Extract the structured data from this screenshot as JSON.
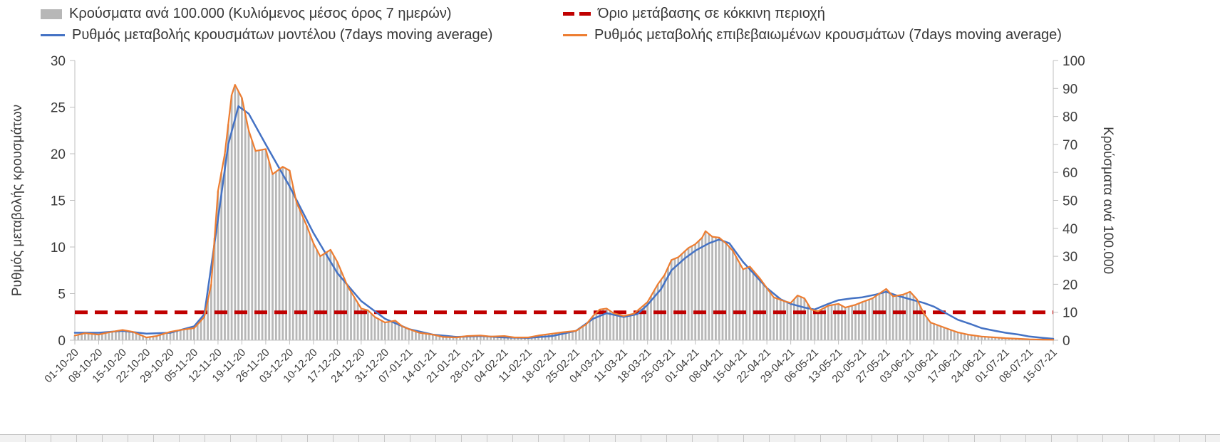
{
  "legend": {
    "items": [
      {
        "label": "Κρούσματα ανά 100.000 (Κυλιόμενος μέσος όρος 7 ημερών)"
      },
      {
        "label": "Όριο μετάβασης σε κόκκινη περιοχή"
      },
      {
        "label": "Ρυθμός μεταβολής κρουσμάτων μοντέλου (7days moving average)"
      },
      {
        "label": "Ρυθμός μεταβολής επιβεβαιωμένων κρουσμάτων (7days moving average)"
      }
    ]
  },
  "chart_data": {
    "type": "bar+line",
    "title": "",
    "legend_position": "top",
    "grid": false,
    "x_tick_labels": [
      "01-10-20",
      "08-10-20",
      "15-10-20",
      "22-10-20",
      "29-10-20",
      "05-11-20",
      "12-11-20",
      "19-11-20",
      "26-11-20",
      "03-12-20",
      "10-12-20",
      "17-12-20",
      "24-12-20",
      "31-12-20",
      "07-01-21",
      "14-01-21",
      "21-01-21",
      "28-01-21",
      "04-02-21",
      "11-02-21",
      "18-02-21",
      "25-02-21",
      "04-03-21",
      "11-03-21",
      "18-03-21",
      "25-03-21",
      "01-04-21",
      "08-04-21",
      "15-04-21",
      "22-04-21",
      "29-04-21",
      "06-05-21",
      "13-05-21",
      "20-05-21",
      "27-05-21",
      "03-06-21",
      "10-06-21",
      "17-06-21",
      "24-06-21",
      "01-07-21",
      "08-07-21",
      "15-07-21"
    ],
    "x_tick_day_spacing": 7,
    "x_day_range": [
      0,
      287
    ],
    "left_axis": {
      "label": "Ρυθμός μεταβολής κρουσμάτων",
      "min": 0,
      "max": 30,
      "ticks": [
        0,
        5,
        10,
        15,
        20,
        25,
        30
      ]
    },
    "right_axis": {
      "label": "Κρούσματα ανά 100.000",
      "min": 0,
      "max": 100,
      "ticks": [
        0,
        10,
        20,
        30,
        40,
        50,
        60,
        70,
        80,
        90,
        100
      ]
    },
    "threshold": {
      "name": "Όριο μετάβασης σε κόκκινη περιοχή",
      "axis": "left",
      "value": 3,
      "value_right_axis": 10,
      "color": "#c00000",
      "style": "dashed"
    },
    "series": [
      {
        "name": "Κρούσματα ανά 100.000 (Κυλιόμενος μέσος όρος 7 ημερών)",
        "type": "bar",
        "axis": "right",
        "color": "#b7b7b7",
        "points": [
          [
            0,
            1.7
          ],
          [
            3,
            2.5
          ],
          [
            7,
            2.0
          ],
          [
            10,
            2.8
          ],
          [
            14,
            3.7
          ],
          [
            17,
            3.0
          ],
          [
            21,
            1.0
          ],
          [
            24,
            1.5
          ],
          [
            28,
            3.0
          ],
          [
            31,
            3.7
          ],
          [
            35,
            4.3
          ],
          [
            38,
            8.3
          ],
          [
            40,
            20
          ],
          [
            42,
            53.3
          ],
          [
            44,
            66.7
          ],
          [
            46,
            87.7
          ],
          [
            47,
            91.3
          ],
          [
            49,
            86.7
          ],
          [
            51,
            75
          ],
          [
            53,
            67.7
          ],
          [
            56,
            68.3
          ],
          [
            58,
            59.3
          ],
          [
            61,
            62
          ],
          [
            63,
            60.7
          ],
          [
            65,
            49.3
          ],
          [
            68,
            41
          ],
          [
            70,
            34.7
          ],
          [
            72,
            30
          ],
          [
            75,
            32.3
          ],
          [
            77,
            28
          ],
          [
            80,
            19.3
          ],
          [
            82,
            15.3
          ],
          [
            84,
            11.3
          ],
          [
            86,
            10.7
          ],
          [
            88,
            8.3
          ],
          [
            91,
            6.3
          ],
          [
            94,
            7
          ],
          [
            96,
            5
          ],
          [
            98,
            4
          ],
          [
            101,
            2.7
          ],
          [
            105,
            2
          ],
          [
            108,
            1.2
          ],
          [
            112,
            1
          ],
          [
            115,
            1.5
          ],
          [
            119,
            1.7
          ],
          [
            122,
            1.3
          ],
          [
            126,
            1.5
          ],
          [
            129,
            1
          ],
          [
            133,
            1
          ],
          [
            136,
            1.7
          ],
          [
            140,
            2.3
          ],
          [
            143,
            2.8
          ],
          [
            147,
            3.3
          ],
          [
            150,
            5.7
          ],
          [
            152,
            8.7
          ],
          [
            154,
            11
          ],
          [
            156,
            11.3
          ],
          [
            158,
            9.7
          ],
          [
            161,
            8.7
          ],
          [
            164,
            9.5
          ],
          [
            168,
            13.7
          ],
          [
            171,
            20
          ],
          [
            173,
            23.3
          ],
          [
            175,
            28.7
          ],
          [
            177,
            29.7
          ],
          [
            180,
            33
          ],
          [
            182,
            34.3
          ],
          [
            184,
            36.7
          ],
          [
            185,
            39
          ],
          [
            187,
            37
          ],
          [
            189,
            36.7
          ],
          [
            191,
            34.7
          ],
          [
            193,
            32
          ],
          [
            196,
            25.3
          ],
          [
            198,
            26.3
          ],
          [
            201,
            22
          ],
          [
            203,
            18.7
          ],
          [
            205,
            15.3
          ],
          [
            208,
            14
          ],
          [
            210,
            13.3
          ],
          [
            212,
            16
          ],
          [
            214,
            15
          ],
          [
            216,
            11
          ],
          [
            218,
            10.3
          ],
          [
            221,
            12.3
          ],
          [
            224,
            13
          ],
          [
            226,
            11.7
          ],
          [
            229,
            12.7
          ],
          [
            231,
            13.7
          ],
          [
            234,
            15
          ],
          [
            236,
            16.7
          ],
          [
            238,
            18.3
          ],
          [
            240,
            15.7
          ],
          [
            243,
            16.3
          ],
          [
            245,
            17.3
          ],
          [
            247,
            14.7
          ],
          [
            249,
            9.7
          ],
          [
            251,
            6.3
          ],
          [
            254,
            5
          ],
          [
            257,
            3.7
          ],
          [
            259,
            2.8
          ],
          [
            262,
            2
          ],
          [
            266,
            1.3
          ],
          [
            270,
            1
          ],
          [
            273,
            0.7
          ],
          [
            277,
            0.5
          ],
          [
            280,
            0.3
          ],
          [
            284,
            0.2
          ],
          [
            287,
            0.2
          ]
        ]
      },
      {
        "name": "Ρυθμός μεταβολής κρουσμάτων μοντέλου (7days moving average)",
        "type": "line",
        "axis": "left",
        "color": "#4472c4",
        "points": [
          [
            0,
            0.8
          ],
          [
            7,
            0.8
          ],
          [
            14,
            1.0
          ],
          [
            21,
            0.7
          ],
          [
            28,
            0.8
          ],
          [
            35,
            1.5
          ],
          [
            38,
            2.8
          ],
          [
            42,
            13
          ],
          [
            45,
            21
          ],
          [
            48,
            25.1
          ],
          [
            51,
            24.3
          ],
          [
            56,
            21
          ],
          [
            63,
            16.5
          ],
          [
            70,
            11.5
          ],
          [
            77,
            7.2
          ],
          [
            84,
            4.2
          ],
          [
            91,
            2.3
          ],
          [
            98,
            1.2
          ],
          [
            105,
            0.6
          ],
          [
            112,
            0.35
          ],
          [
            119,
            0.45
          ],
          [
            126,
            0.3
          ],
          [
            133,
            0.25
          ],
          [
            140,
            0.45
          ],
          [
            147,
            1.0
          ],
          [
            152,
            2.3
          ],
          [
            156,
            2.9
          ],
          [
            161,
            2.5
          ],
          [
            165,
            2.8
          ],
          [
            168,
            3.8
          ],
          [
            172,
            5.5
          ],
          [
            175,
            7.5
          ],
          [
            179,
            8.8
          ],
          [
            182,
            9.6
          ],
          [
            186,
            10.4
          ],
          [
            189,
            10.8
          ],
          [
            192,
            10.4
          ],
          [
            196,
            8.4
          ],
          [
            200,
            6.8
          ],
          [
            203,
            5.6
          ],
          [
            207,
            4.4
          ],
          [
            210,
            3.9
          ],
          [
            214,
            3.5
          ],
          [
            217,
            3.3
          ],
          [
            221,
            3.9
          ],
          [
            224,
            4.3
          ],
          [
            228,
            4.5
          ],
          [
            231,
            4.6
          ],
          [
            235,
            4.9
          ],
          [
            238,
            5.2
          ],
          [
            241,
            4.8
          ],
          [
            245,
            4.4
          ],
          [
            249,
            4.0
          ],
          [
            252,
            3.6
          ],
          [
            256,
            2.8
          ],
          [
            259,
            2.2
          ],
          [
            263,
            1.7
          ],
          [
            266,
            1.3
          ],
          [
            270,
            1.0
          ],
          [
            273,
            0.8
          ],
          [
            277,
            0.6
          ],
          [
            280,
            0.4
          ],
          [
            284,
            0.25
          ],
          [
            287,
            0.15
          ]
        ]
      },
      {
        "name": "Ρυθμός μεταβολής επιβεβαιωμένων κρουσμάτων (7days moving average)",
        "type": "line",
        "axis": "left",
        "color": "#ed7d31",
        "points": [
          [
            0,
            0.5
          ],
          [
            3,
            0.75
          ],
          [
            7,
            0.6
          ],
          [
            10,
            0.85
          ],
          [
            14,
            1.1
          ],
          [
            17,
            0.9
          ],
          [
            21,
            0.3
          ],
          [
            24,
            0.45
          ],
          [
            28,
            0.9
          ],
          [
            31,
            1.1
          ],
          [
            35,
            1.3
          ],
          [
            38,
            2.5
          ],
          [
            40,
            6
          ],
          [
            42,
            16
          ],
          [
            44,
            20
          ],
          [
            46,
            26.3
          ],
          [
            47,
            27.4
          ],
          [
            49,
            26
          ],
          [
            51,
            22.5
          ],
          [
            53,
            20.3
          ],
          [
            56,
            20.5
          ],
          [
            58,
            17.8
          ],
          [
            61,
            18.6
          ],
          [
            63,
            18.2
          ],
          [
            65,
            14.8
          ],
          [
            68,
            12.3
          ],
          [
            70,
            10.4
          ],
          [
            72,
            9.0
          ],
          [
            75,
            9.7
          ],
          [
            77,
            8.4
          ],
          [
            80,
            5.8
          ],
          [
            82,
            4.6
          ],
          [
            84,
            3.4
          ],
          [
            86,
            3.2
          ],
          [
            88,
            2.5
          ],
          [
            91,
            1.9
          ],
          [
            94,
            2.1
          ],
          [
            96,
            1.5
          ],
          [
            98,
            1.2
          ],
          [
            101,
            0.8
          ],
          [
            105,
            0.6
          ],
          [
            108,
            0.35
          ],
          [
            112,
            0.3
          ],
          [
            115,
            0.45
          ],
          [
            119,
            0.5
          ],
          [
            122,
            0.4
          ],
          [
            126,
            0.45
          ],
          [
            129,
            0.3
          ],
          [
            133,
            0.3
          ],
          [
            136,
            0.5
          ],
          [
            140,
            0.7
          ],
          [
            143,
            0.85
          ],
          [
            147,
            1.0
          ],
          [
            150,
            1.7
          ],
          [
            152,
            2.6
          ],
          [
            154,
            3.3
          ],
          [
            156,
            3.4
          ],
          [
            158,
            2.9
          ],
          [
            161,
            2.6
          ],
          [
            164,
            2.85
          ],
          [
            168,
            4.1
          ],
          [
            171,
            6.0
          ],
          [
            173,
            7.0
          ],
          [
            175,
            8.6
          ],
          [
            177,
            8.9
          ],
          [
            180,
            9.9
          ],
          [
            182,
            10.3
          ],
          [
            184,
            11.0
          ],
          [
            185,
            11.7
          ],
          [
            187,
            11.1
          ],
          [
            189,
            11.0
          ],
          [
            191,
            10.4
          ],
          [
            193,
            9.6
          ],
          [
            196,
            7.6
          ],
          [
            198,
            7.9
          ],
          [
            201,
            6.6
          ],
          [
            203,
            5.6
          ],
          [
            205,
            4.6
          ],
          [
            208,
            4.2
          ],
          [
            210,
            4.0
          ],
          [
            212,
            4.8
          ],
          [
            214,
            4.5
          ],
          [
            216,
            3.3
          ],
          [
            218,
            3.1
          ],
          [
            221,
            3.7
          ],
          [
            224,
            3.9
          ],
          [
            226,
            3.5
          ],
          [
            229,
            3.8
          ],
          [
            231,
            4.1
          ],
          [
            234,
            4.5
          ],
          [
            236,
            5.0
          ],
          [
            238,
            5.5
          ],
          [
            240,
            4.7
          ],
          [
            243,
            4.9
          ],
          [
            245,
            5.2
          ],
          [
            247,
            4.4
          ],
          [
            249,
            2.9
          ],
          [
            251,
            1.9
          ],
          [
            254,
            1.5
          ],
          [
            257,
            1.1
          ],
          [
            259,
            0.85
          ],
          [
            262,
            0.6
          ],
          [
            266,
            0.4
          ],
          [
            270,
            0.3
          ],
          [
            273,
            0.22
          ],
          [
            277,
            0.15
          ],
          [
            280,
            0.1
          ],
          [
            284,
            0.07
          ],
          [
            287,
            0.05
          ]
        ]
      }
    ]
  }
}
